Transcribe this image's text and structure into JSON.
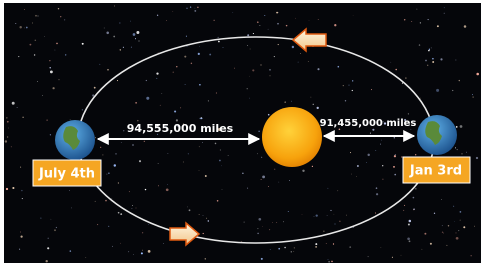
{
  "nodes": [
    {
      "label": "July 4th",
      "distance": "94,555,000 miles"
    },
    {
      "label": "Jan 3rd",
      "distance": "91,455,000 miles"
    }
  ]
}
